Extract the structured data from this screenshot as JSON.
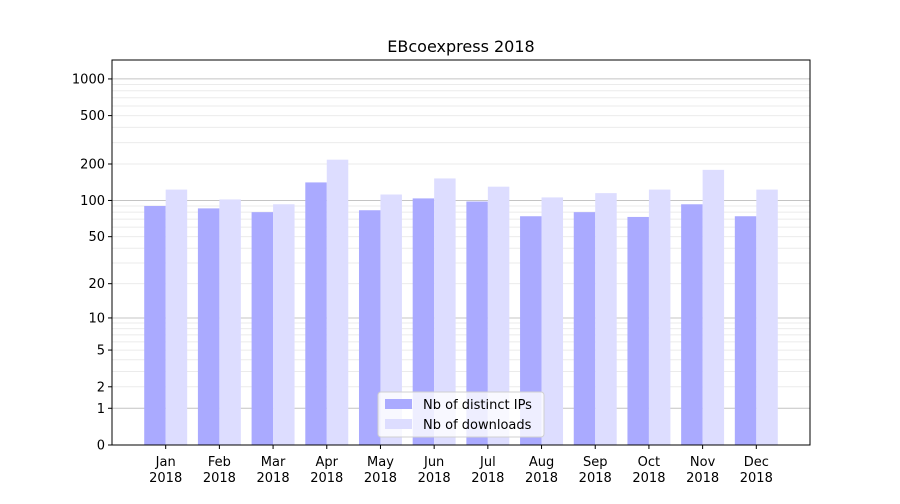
{
  "chart_data": {
    "type": "bar",
    "title": "EBcoexpress 2018",
    "xlabel": "",
    "ylabel": "",
    "y_scale": "log(y+1)",
    "ylim": [
      0,
      1430
    ],
    "grid": true,
    "legend_position": "lower center",
    "categories": [
      "Jan\n2018",
      "Feb\n2018",
      "Mar\n2018",
      "Apr\n2018",
      "May\n2018",
      "Jun\n2018",
      "Jul\n2018",
      "Aug\n2018",
      "Sep\n2018",
      "Oct\n2018",
      "Nov\n2018",
      "Dec\n2018"
    ],
    "y_ticks": [
      0,
      1,
      2,
      5,
      10,
      20,
      50,
      100,
      200,
      500,
      1000
    ],
    "y_tick_labels": [
      "0",
      "1",
      "2",
      "5",
      "10",
      "20",
      "50",
      "100",
      "200",
      "500",
      "1000"
    ],
    "series": [
      {
        "name": "Nb of distinct IPs",
        "color": "#aaaaff",
        "values": [
          90,
          86,
          80,
          141,
          83,
          104,
          98,
          74,
          80,
          73,
          93,
          74
        ]
      },
      {
        "name": "Nb of downloads",
        "color": "#ddddff",
        "values": [
          123,
          102,
          93,
          217,
          112,
          152,
          130,
          106,
          115,
          123,
          179,
          123
        ]
      }
    ]
  }
}
